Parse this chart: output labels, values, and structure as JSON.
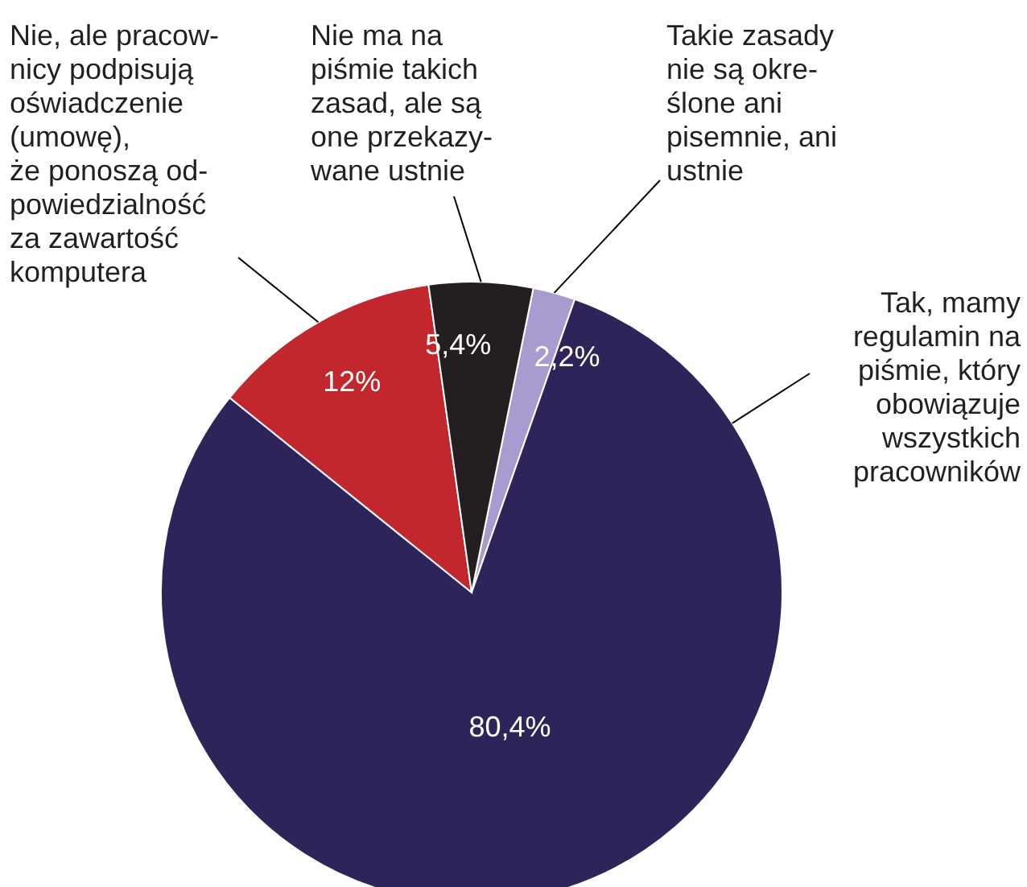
{
  "chart_data": {
    "type": "pie",
    "categories": [
      "Takie zasady\nnie są okre-\nślone ani\npisemnie, ani\nustnie",
      "Tak, mamy\nregulamin na\npiśmie, który\nobowiązuje\nwszystkich\npracowników",
      "Nie, ale pracow-\nnicy podpisują\noświadczenie\n(umowę),\nże ponoszą od-\npowiedzialność\nza zawartość\nkomputera",
      "Nie ma na\npiśmie takich\nzasad, ale są\none przekazy-\nwane ustnie"
    ],
    "values": [
      2.2,
      80.4,
      12,
      5.4
    ],
    "value_labels": [
      "2,2%",
      "80,4%",
      "12%",
      "5,4%"
    ],
    "colors": [
      "#a99bd0",
      "#2e2459",
      "#c1272d",
      "#231f20"
    ],
    "legend": false
  }
}
